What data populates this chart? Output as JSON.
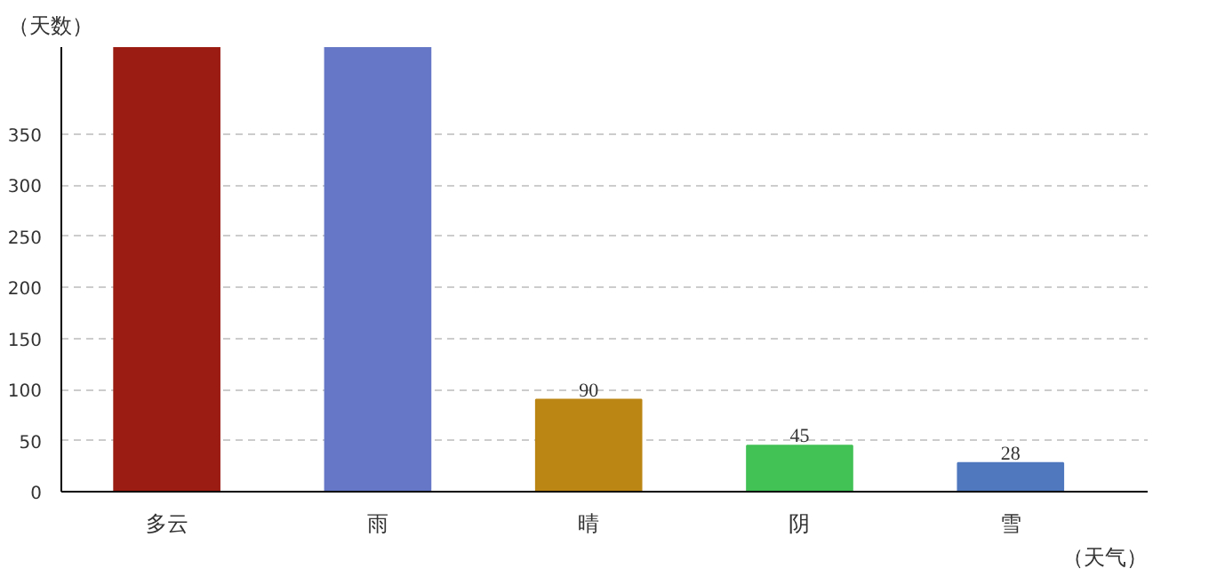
{
  "chart_data": {
    "type": "bar",
    "xlabel": "（天气）",
    "ylabel": "（天数）",
    "categories": [
      "多云",
      "雨",
      "晴",
      "阴",
      "雪"
    ],
    "values": [
      435,
      435,
      90,
      45,
      28
    ],
    "colors": [
      "#9b1c12",
      "#6577c6",
      "#bb8614",
      "#42c155",
      "#4f78be"
    ],
    "value_labels": [
      null,
      null,
      "90",
      "45",
      "28"
    ],
    "ylim": [
      0,
      435
    ],
    "yticks": [
      0,
      50,
      100,
      150,
      200,
      250,
      300,
      350
    ],
    "grid": "y"
  }
}
